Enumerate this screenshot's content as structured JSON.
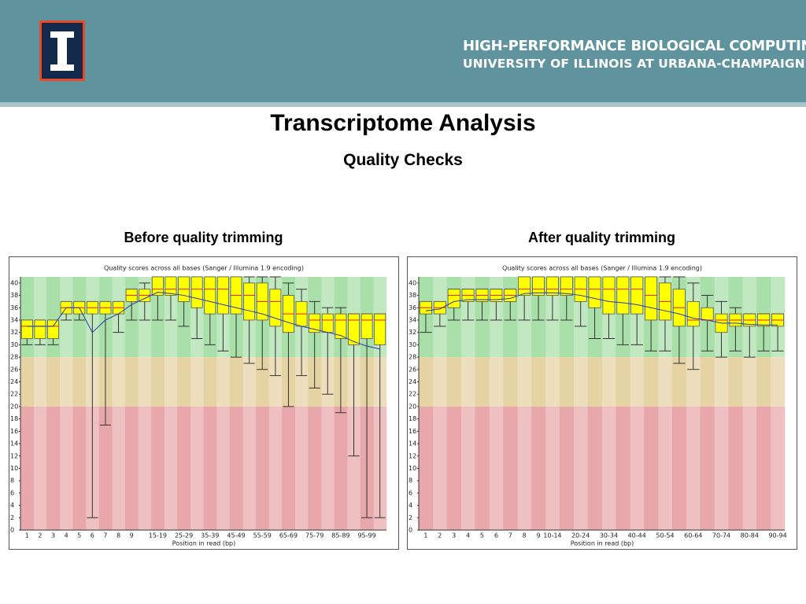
{
  "header": {
    "line1": "HIGH-PERFORMANCE BIOLOGICAL COMPUTING",
    "line2": "UNIVERSITY OF ILLINOIS AT URBANA-CHAMPAIGN"
  },
  "title": "Transcriptome Analysis",
  "subtitle": "Quality Checks",
  "chart_data": [
    {
      "type": "box",
      "heading": "Before quality trimming",
      "title": "Quality scores across all bases (Sanger / Illumina 1.9 encoding)",
      "x_label": "Position in read (bp)",
      "categories": [
        "1",
        "2",
        "3",
        "4",
        "5",
        "6",
        "7",
        "8",
        "9",
        null,
        "15-19",
        null,
        "25-29",
        null,
        "35-39",
        null,
        "45-49",
        null,
        "55-59",
        null,
        "65-69",
        null,
        "75-79",
        null,
        "85-89",
        null,
        "95-99",
        null
      ],
      "whisker_low": [
        30,
        30,
        30,
        34,
        34,
        2,
        17,
        32,
        34,
        34,
        34,
        34,
        33,
        31,
        30,
        29,
        28,
        27,
        26,
        25,
        20,
        25,
        23,
        22,
        19,
        12,
        2,
        2
      ],
      "q1": [
        31,
        31,
        31,
        35,
        35,
        35,
        35,
        35,
        37,
        37,
        38,
        38,
        37,
        36,
        35,
        35,
        35,
        34,
        34,
        33,
        32,
        33,
        32,
        32,
        31,
        30,
        31,
        30
      ],
      "median": [
        33,
        33,
        33,
        36,
        36,
        36,
        36,
        36,
        38,
        38,
        39,
        39,
        39,
        39,
        39,
        39,
        38,
        38,
        37,
        37,
        35,
        35,
        34,
        34,
        34,
        34,
        34,
        34
      ],
      "q3": [
        34,
        34,
        34,
        37,
        37,
        37,
        37,
        37,
        39,
        39,
        41,
        41,
        41,
        41,
        41,
        41,
        41,
        40,
        40,
        39,
        38,
        37,
        35,
        35,
        35,
        35,
        35,
        35
      ],
      "whisker_high": [
        34,
        34,
        34,
        37,
        37,
        37,
        37,
        37,
        39,
        40,
        41,
        41,
        41,
        41,
        41,
        41,
        41,
        41,
        41,
        41,
        40,
        39,
        37,
        36,
        36,
        35,
        35,
        35
      ],
      "mean": [
        33,
        33,
        33,
        36,
        36,
        32,
        34,
        35,
        36.5,
        37.5,
        38.5,
        38.3,
        38,
        37.5,
        37,
        36.5,
        36,
        35.5,
        35,
        34.3,
        33.6,
        33,
        32.5,
        32,
        31.5,
        30.5,
        29.8,
        29.3
      ],
      "ylim": [
        0,
        41
      ],
      "yticks": [
        0,
        2,
        4,
        6,
        8,
        10,
        12,
        14,
        16,
        18,
        20,
        22,
        24,
        26,
        28,
        30,
        32,
        34,
        36,
        38,
        40
      ],
      "bands": [
        {
          "from": 0,
          "to": 20,
          "color": "#e8a7ab"
        },
        {
          "from": 20,
          "to": 28,
          "color": "#e6d3a4"
        },
        {
          "from": 28,
          "to": 41,
          "color": "#a9dfa9"
        }
      ],
      "box_color": "#ffff00",
      "median_color": "#e02020",
      "mean_color": "#2a3aa8"
    },
    {
      "type": "box",
      "heading": "After quality trimming",
      "title": "Quality scores across all bases (Sanger / Illumina 1.9 encoding)",
      "x_label": "Position in read (bp)",
      "categories": [
        "1",
        "2",
        "3",
        "4",
        "5",
        "6",
        "7",
        "8",
        "9",
        "10-14",
        null,
        "20-24",
        null,
        "30-34",
        null,
        "40-44",
        null,
        "50-54",
        null,
        "60-64",
        null,
        "70-74",
        null,
        "80-84",
        null,
        "90-94"
      ],
      "whisker_low": [
        32,
        33,
        34,
        34,
        34,
        34,
        34,
        34,
        34,
        34,
        34,
        33,
        31,
        31,
        30,
        30,
        29,
        29,
        27,
        26,
        29,
        28,
        29,
        28,
        29,
        29
      ],
      "q1": [
        35,
        35,
        36,
        37,
        37,
        37,
        37,
        38,
        38,
        38,
        38,
        37,
        36,
        35,
        35,
        35,
        34,
        34,
        33,
        33,
        34,
        32,
        33,
        33,
        33,
        33
      ],
      "median": [
        36,
        36,
        38,
        38,
        38,
        38,
        38,
        39,
        39,
        39,
        39,
        39,
        39,
        39,
        39,
        39,
        38,
        37,
        36,
        34,
        34,
        34,
        34,
        34,
        34,
        34
      ],
      "q3": [
        37,
        37,
        39,
        39,
        39,
        39,
        39,
        41,
        41,
        41,
        41,
        41,
        41,
        41,
        41,
        41,
        41,
        40,
        39,
        37,
        36,
        35,
        35,
        35,
        35,
        35
      ],
      "whisker_high": [
        37,
        37,
        39,
        39,
        39,
        39,
        39,
        41,
        41,
        41,
        41,
        41,
        41,
        41,
        41,
        41,
        41,
        41,
        41,
        40,
        38,
        37,
        36,
        35,
        35,
        35
      ],
      "mean": [
        35.5,
        35.8,
        37,
        37.3,
        37.3,
        37.3,
        37.5,
        38.3,
        38.4,
        38.4,
        38.3,
        38,
        37.5,
        37,
        36.8,
        36.5,
        36,
        35.5,
        35,
        34.3,
        34,
        33.5,
        33.5,
        33.3,
        33.2,
        33.2
      ],
      "ylim": [
        0,
        41
      ],
      "yticks": [
        0,
        2,
        4,
        6,
        8,
        10,
        12,
        14,
        16,
        18,
        20,
        22,
        24,
        26,
        28,
        30,
        32,
        34,
        36,
        38,
        40
      ],
      "bands": [
        {
          "from": 0,
          "to": 20,
          "color": "#e8a7ab"
        },
        {
          "from": 20,
          "to": 28,
          "color": "#e6d3a4"
        },
        {
          "from": 28,
          "to": 41,
          "color": "#a9dfa9"
        }
      ],
      "box_color": "#ffff00",
      "median_color": "#e02020",
      "mean_color": "#2a3aa8"
    }
  ]
}
